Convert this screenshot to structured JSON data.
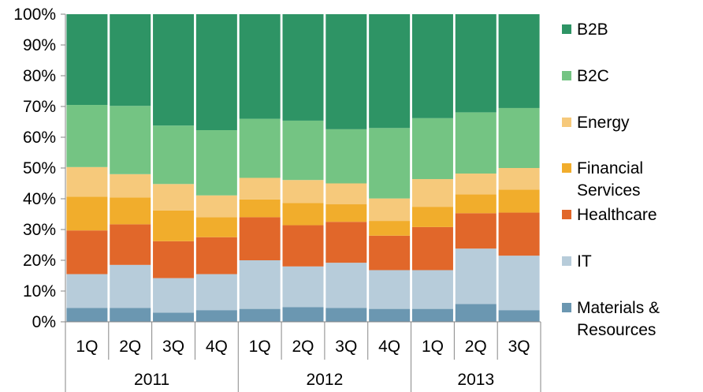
{
  "chart_data": {
    "type": "bar",
    "stacked": true,
    "percent": true,
    "title": "",
    "xlabel": "",
    "ylabel": "",
    "ylim": [
      0,
      100
    ],
    "y_ticks": [
      "0%",
      "10%",
      "20%",
      "30%",
      "40%",
      "50%",
      "60%",
      "70%",
      "80%",
      "90%",
      "100%"
    ],
    "grid": false,
    "legend_position": "right",
    "categories": [
      "1Q",
      "2Q",
      "3Q",
      "4Q",
      "1Q",
      "2Q",
      "3Q",
      "4Q",
      "1Q",
      "2Q",
      "3Q"
    ],
    "year_groups": [
      {
        "label": "2011",
        "count": 4
      },
      {
        "label": "2012",
        "count": 4
      },
      {
        "label": "2013",
        "count": 3
      }
    ],
    "series": [
      {
        "name": "Materials & Resources",
        "legend_lines": [
          "Materials &",
          "Resources"
        ],
        "color": "#6b97b1",
        "values": [
          4.5,
          4.5,
          3.0,
          3.8,
          4.2,
          4.8,
          4.5,
          4.2,
          4.2,
          5.8,
          3.8
        ]
      },
      {
        "name": "IT",
        "legend_lines": [
          "IT"
        ],
        "color": "#b7ccda",
        "values": [
          11.0,
          14.0,
          11.2,
          11.7,
          15.8,
          13.2,
          14.7,
          12.6,
          12.6,
          18.0,
          17.7
        ]
      },
      {
        "name": "Healthcare",
        "legend_lines": [
          "Healthcare"
        ],
        "color": "#e1672a",
        "values": [
          14.2,
          13.2,
          12.0,
          12.0,
          14.0,
          13.4,
          13.3,
          11.2,
          14.0,
          11.5,
          14.0
        ]
      },
      {
        "name": "Financial Services",
        "legend_lines": [
          "Financial",
          "Services"
        ],
        "color": "#f1ad2c",
        "values": [
          11.0,
          8.7,
          10.0,
          6.5,
          5.8,
          7.2,
          5.7,
          4.8,
          6.6,
          6.1,
          7.5
        ]
      },
      {
        "name": "Energy",
        "legend_lines": [
          "Energy"
        ],
        "color": "#f6c97b",
        "values": [
          9.6,
          7.6,
          8.6,
          7.1,
          7.0,
          7.5,
          6.8,
          7.3,
          9.0,
          6.8,
          7.0
        ]
      },
      {
        "name": "B2C",
        "legend_lines": [
          "B2C"
        ],
        "color": "#74c483",
        "values": [
          20.2,
          22.2,
          19.0,
          21.2,
          19.2,
          19.3,
          17.6,
          22.9,
          19.8,
          19.9,
          19.5
        ]
      },
      {
        "name": "B2B",
        "legend_lines": [
          "B2B"
        ],
        "color": "#2e9465",
        "values": [
          29.5,
          29.8,
          36.2,
          37.7,
          34.0,
          34.6,
          37.4,
          37.0,
          33.8,
          31.9,
          30.5
        ]
      }
    ]
  }
}
